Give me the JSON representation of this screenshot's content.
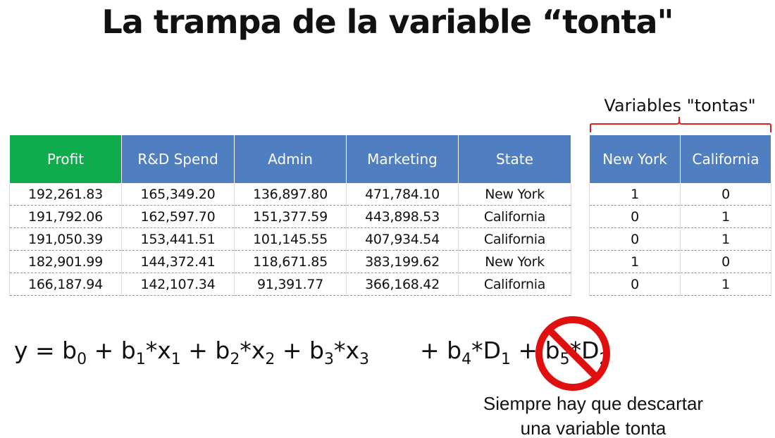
{
  "title": "La trampa de la variable “tonta\"",
  "bracket_label": "Variables \"tontas\"",
  "main_table": {
    "headers": [
      "Profit",
      "R&D Spend",
      "Admin",
      "Marketing",
      "State"
    ],
    "rows": [
      [
        "192,261.83",
        "165,349.20",
        "136,897.80",
        "471,784.10",
        "New York"
      ],
      [
        "191,792.06",
        "162,597.70",
        "151,377.59",
        "443,898.53",
        "California"
      ],
      [
        "191,050.39",
        "153,441.51",
        "101,145.55",
        "407,934.54",
        "California"
      ],
      [
        "182,901.99",
        "144,372.41",
        "118,671.85",
        "383,199.62",
        "New York"
      ],
      [
        "166,187.94",
        "142,107.34",
        "91,391.77",
        "366,168.42",
        "California"
      ]
    ]
  },
  "dummy_table": {
    "headers": [
      "New York",
      "California"
    ],
    "rows": [
      [
        "1",
        "0"
      ],
      [
        "0",
        "1"
      ],
      [
        "0",
        "1"
      ],
      [
        "1",
        "0"
      ],
      [
        "0",
        "1"
      ]
    ]
  },
  "equation": {
    "y": "y",
    "eq": " = ",
    "plus": " + ",
    "times": "*",
    "b": "b",
    "x": "x",
    "D": "D",
    "sub0": "0",
    "sub1": "1",
    "sub2": "2",
    "sub3": "3",
    "sub4": "4",
    "sub5": "5",
    "plus_lead": "+ "
  },
  "note": {
    "line1": "Siempre hay que descartar",
    "line2": "una variable tonta"
  },
  "colors": {
    "profit_header": "#0fac4d",
    "header": "#4f7ec1",
    "bracket": "#e02020",
    "prohibition_sign": "#e01010"
  },
  "icons": {
    "prohibition": "no-entry-icon"
  }
}
